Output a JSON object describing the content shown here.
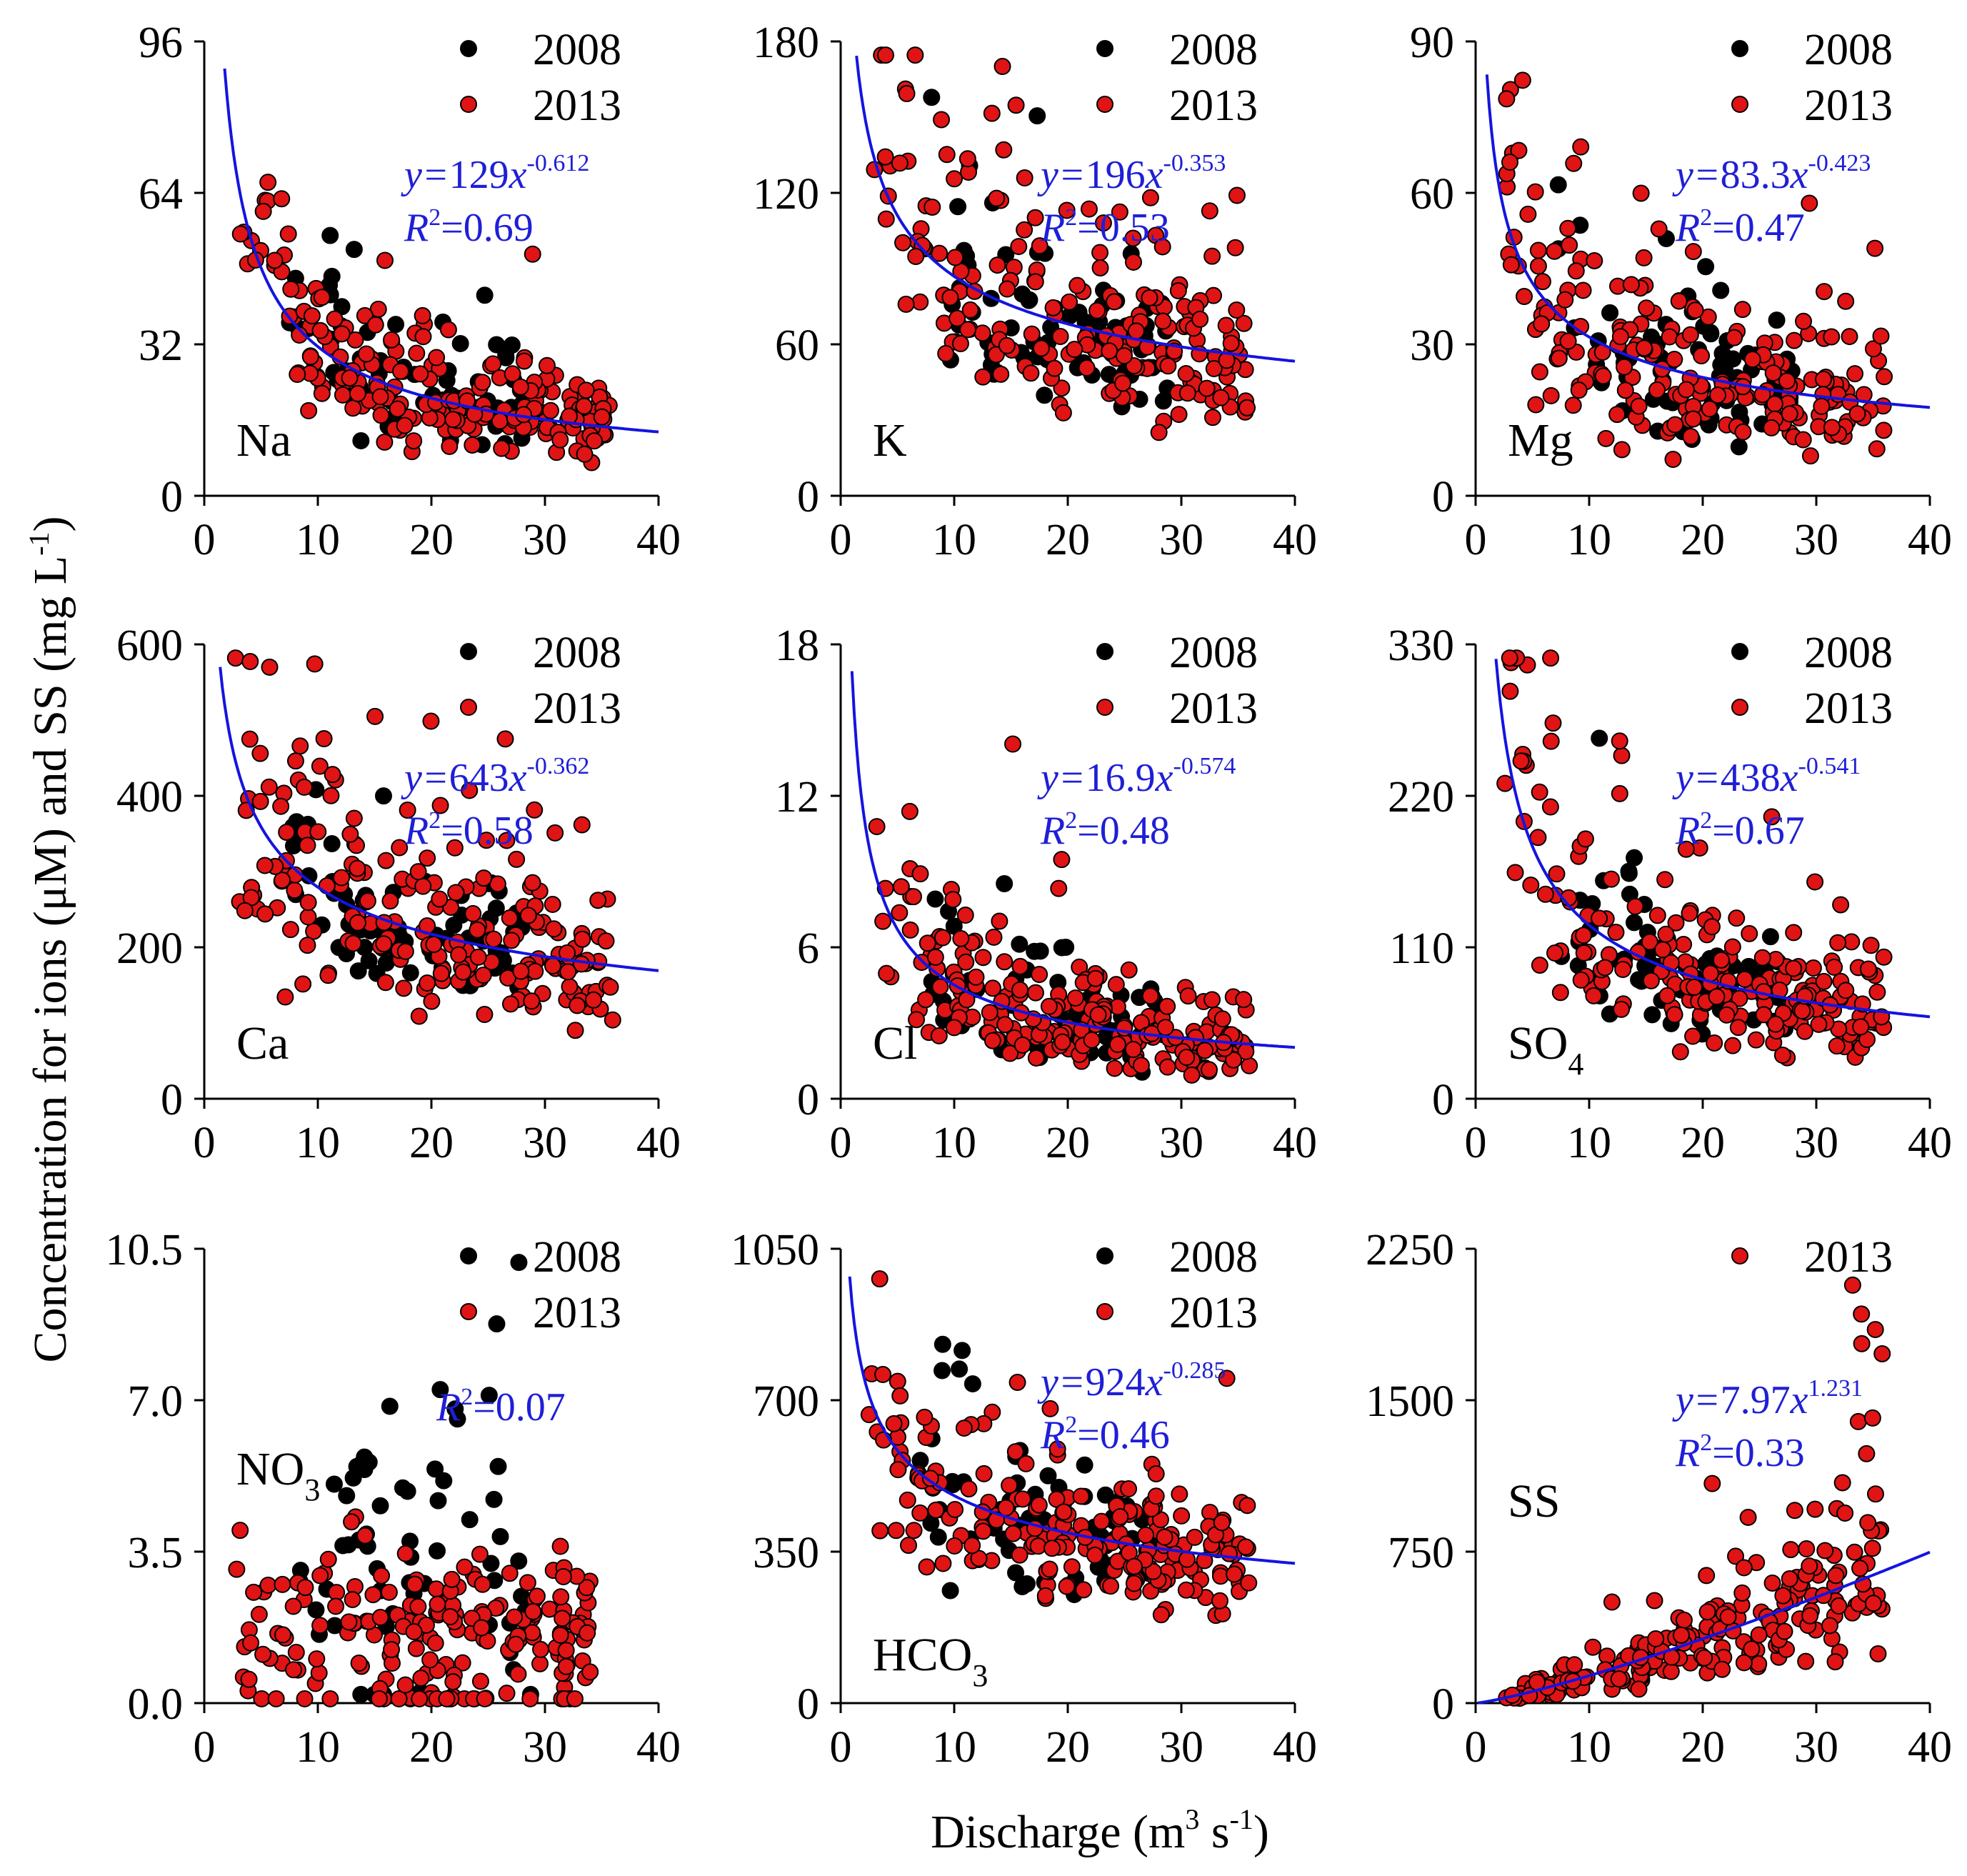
{
  "figure": {
    "y_axis_title": {
      "main": "Concentration for ions (μM) and SS (mg L",
      "sup": "-1",
      "close": ")"
    },
    "x_axis_title": {
      "main": "Discharge (m",
      "sup1": "3",
      "mid": " s",
      "sup2": "-1",
      "close": ")"
    },
    "colors": {
      "y2008": "#000000",
      "y2013": "#e01414",
      "curve": "#1414e0"
    }
  },
  "chart_data": [
    {
      "type": "scatter",
      "label": "Na",
      "label_sub": "",
      "xlim": [
        0,
        40
      ],
      "ylim": [
        0,
        96
      ],
      "xticks": [
        "0",
        "10",
        "20",
        "30",
        "40"
      ],
      "yticks": [
        "0",
        "32",
        "64",
        "96"
      ],
      "legend": [
        "2008",
        "2013"
      ],
      "fit": {
        "a": 129,
        "b": -0.612,
        "coef": "129",
        "exp": "-0.612",
        "r2": "0.69"
      },
      "series": [
        {
          "name": "2008",
          "seed": 11,
          "n": 70,
          "x_range": [
            7,
            28
          ],
          "spread": 0.35,
          "floor": 0.5
        },
        {
          "name": "2013",
          "seed": 12,
          "n": 210,
          "x_range": [
            2.5,
            36
          ],
          "spread": 0.3,
          "floor": 0.5
        }
      ]
    },
    {
      "type": "scatter",
      "label": "K",
      "label_sub": "",
      "xlim": [
        0,
        40
      ],
      "ylim": [
        0,
        180
      ],
      "xticks": [
        "0",
        "10",
        "20",
        "30",
        "40"
      ],
      "yticks": [
        "0",
        "60",
        "120",
        "180"
      ],
      "legend": [
        "2008",
        "2013"
      ],
      "fit": {
        "a": 196,
        "b": -0.353,
        "coef": "196",
        "exp": "-0.353",
        "r2": "0.53"
      },
      "series": [
        {
          "name": "2008",
          "seed": 21,
          "n": 70,
          "x_range": [
            8,
            29
          ],
          "spread": 0.3,
          "floor": 1
        },
        {
          "name": "2013",
          "seed": 22,
          "n": 210,
          "x_range": [
            2.5,
            36
          ],
          "spread": 0.32,
          "floor": 1
        }
      ]
    },
    {
      "type": "scatter",
      "label": "Mg",
      "label_sub": "",
      "xlim": [
        0,
        40
      ],
      "ylim": [
        0,
        90
      ],
      "xticks": [
        "0",
        "10",
        "20",
        "30",
        "40"
      ],
      "yticks": [
        "0",
        "30",
        "60",
        "90"
      ],
      "legend": [
        "2008",
        "2013"
      ],
      "fit": {
        "a": 83.3,
        "b": -0.423,
        "coef": "83.3",
        "exp": "-0.423",
        "r2": "0.47"
      },
      "series": [
        {
          "name": "2008",
          "seed": 31,
          "n": 70,
          "x_range": [
            7,
            29
          ],
          "spread": 0.3,
          "floor": 1
        },
        {
          "name": "2013",
          "seed": 32,
          "n": 210,
          "x_range": [
            2.5,
            36
          ],
          "spread": 0.38,
          "floor": 1
        }
      ]
    },
    {
      "type": "scatter",
      "label": "Ca",
      "label_sub": "",
      "xlim": [
        0,
        40
      ],
      "ylim": [
        0,
        600
      ],
      "xticks": [
        "0",
        "10",
        "20",
        "30",
        "40"
      ],
      "yticks": [
        "0",
        "200",
        "400",
        "600"
      ],
      "legend": [
        "2008",
        "2013"
      ],
      "fit": {
        "a": 643,
        "b": -0.362,
        "coef": "643",
        "exp": "-0.362",
        "r2": "0.58"
      },
      "series": [
        {
          "name": "2008",
          "seed": 41,
          "n": 70,
          "x_range": [
            7,
            28
          ],
          "spread": 0.22,
          "floor": 5
        },
        {
          "name": "2013",
          "seed": 42,
          "n": 210,
          "x_range": [
            2.5,
            36
          ],
          "spread": 0.3,
          "floor": 5
        }
      ]
    },
    {
      "type": "scatter",
      "label": "Cl",
      "label_sub": "",
      "xlim": [
        0,
        40
      ],
      "ylim": [
        0,
        18
      ],
      "xticks": [
        "0",
        "10",
        "20",
        "30",
        "40"
      ],
      "yticks": [
        "0",
        "6",
        "12",
        "18"
      ],
      "legend": [
        "2008",
        "2013"
      ],
      "fit": {
        "a": 16.9,
        "b": -0.574,
        "coef": "16.9",
        "exp": "-0.574",
        "r2": "0.48"
      },
      "series": [
        {
          "name": "2008",
          "seed": 51,
          "n": 70,
          "x_range": [
            7,
            28
          ],
          "spread": 0.35,
          "floor": 0.2
        },
        {
          "name": "2013",
          "seed": 52,
          "n": 210,
          "x_range": [
            2.5,
            36
          ],
          "spread": 0.35,
          "floor": 0.2
        }
      ]
    },
    {
      "type": "scatter",
      "label": "SO",
      "label_sub": "4",
      "xlim": [
        0,
        40
      ],
      "ylim": [
        0,
        330
      ],
      "xticks": [
        "0",
        "10",
        "20",
        "30",
        "40"
      ],
      "yticks": [
        "0",
        "110",
        "220",
        "330"
      ],
      "legend": [
        "2008",
        "2013"
      ],
      "fit": {
        "a": 438,
        "b": -0.541,
        "coef": "438",
        "exp": "-0.541",
        "r2": "0.67"
      },
      "series": [
        {
          "name": "2008",
          "seed": 61,
          "n": 70,
          "x_range": [
            7,
            28
          ],
          "spread": 0.3,
          "floor": 3
        },
        {
          "name": "2013",
          "seed": 62,
          "n": 210,
          "x_range": [
            2.5,
            36
          ],
          "spread": 0.35,
          "floor": 3
        }
      ]
    },
    {
      "type": "scatter",
      "label": "NO",
      "label_sub": "3",
      "xlim": [
        0,
        40
      ],
      "ylim": [
        0,
        10.5
      ],
      "xticks": [
        "0",
        "10",
        "20",
        "30",
        "40"
      ],
      "yticks": [
        "0.0",
        "3.5",
        "7.0",
        "10.5"
      ],
      "legend": [
        "2008",
        "2013"
      ],
      "fit": {
        "a": 0,
        "b": 0,
        "coef": "",
        "exp": "",
        "r2": "0.07",
        "r2_only": true
      },
      "series": [
        {
          "name": "2008",
          "seed": 71,
          "n": 65,
          "x_range": [
            7,
            29
          ],
          "center": 3.2,
          "spread": 0.6,
          "floor": 0.2,
          "flat": true
        },
        {
          "name": "2013",
          "seed": 72,
          "n": 200,
          "x_range": [
            2.5,
            34
          ],
          "center": 1.6,
          "spread": 0.6,
          "floor": 0.1,
          "flat": true
        }
      ]
    },
    {
      "type": "scatter",
      "label": "HCO",
      "label_sub": "3",
      "xlim": [
        0,
        40
      ],
      "ylim": [
        0,
        1050
      ],
      "xticks": [
        "0",
        "10",
        "20",
        "30",
        "40"
      ],
      "yticks": [
        "0",
        "350",
        "700",
        "1050"
      ],
      "legend": [
        "2008",
        "2013"
      ],
      "fit": {
        "a": 924,
        "b": -0.285,
        "coef": "924",
        "exp": "-0.285",
        "r2": "0.46"
      },
      "series": [
        {
          "name": "2008",
          "seed": 81,
          "n": 70,
          "x_range": [
            7,
            28
          ],
          "spread": 0.22,
          "floor": 10
        },
        {
          "name": "2013",
          "seed": 82,
          "n": 210,
          "x_range": [
            2.5,
            36
          ],
          "spread": 0.25,
          "floor": 10
        }
      ]
    },
    {
      "type": "scatter",
      "label": "SS",
      "label_sub": "",
      "xlim": [
        0,
        40
      ],
      "ylim": [
        0,
        2250
      ],
      "xticks": [
        "0",
        "10",
        "20",
        "30",
        "40"
      ],
      "yticks": [
        "0",
        "750",
        "1500",
        "2250"
      ],
      "legend": [
        "2013"
      ],
      "fit": {
        "a": 7.97,
        "b": 1.231,
        "coef": "7.97",
        "exp": "1.231",
        "r2": "0.33"
      },
      "series": [
        {
          "name": "2013",
          "seed": 92,
          "n": 210,
          "x_range": [
            2.5,
            36
          ],
          "spread": 0.4,
          "floor": 10,
          "extra": [
            [
              33.2,
              2070
            ],
            [
              34.0,
              1780
            ],
            [
              35.2,
              1850
            ],
            [
              35.8,
              1730
            ],
            [
              24,
              920
            ]
          ]
        }
      ]
    }
  ]
}
